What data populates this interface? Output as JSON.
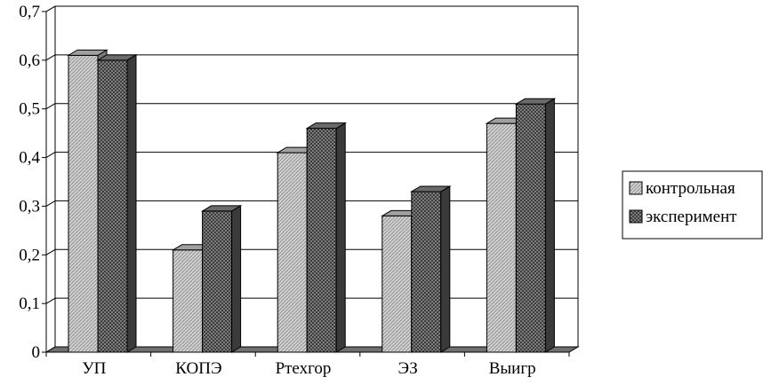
{
  "chart_data": {
    "type": "bar",
    "categories": [
      "УП",
      "КОПЭ",
      "Ртехгор",
      "ЭЗ",
      "Выигр"
    ],
    "series": [
      {
        "name": "контрольная",
        "values": [
          0.61,
          0.21,
          0.41,
          0.28,
          0.47
        ],
        "color": "#c8c8c8",
        "pattern": "diagonal-hatch"
      },
      {
        "name": "эксперимент",
        "values": [
          0.6,
          0.29,
          0.46,
          0.33,
          0.51
        ],
        "color": "#6e6e6e",
        "pattern": "cross-hatch"
      }
    ],
    "yticks": [
      "0",
      "0,1",
      "0,2",
      "0,3",
      "0,4",
      "0,5",
      "0,6",
      "0,7"
    ],
    "ylim": [
      0,
      0.7
    ],
    "grid": true,
    "legend": "right",
    "style": "3d-clustered-bar"
  }
}
